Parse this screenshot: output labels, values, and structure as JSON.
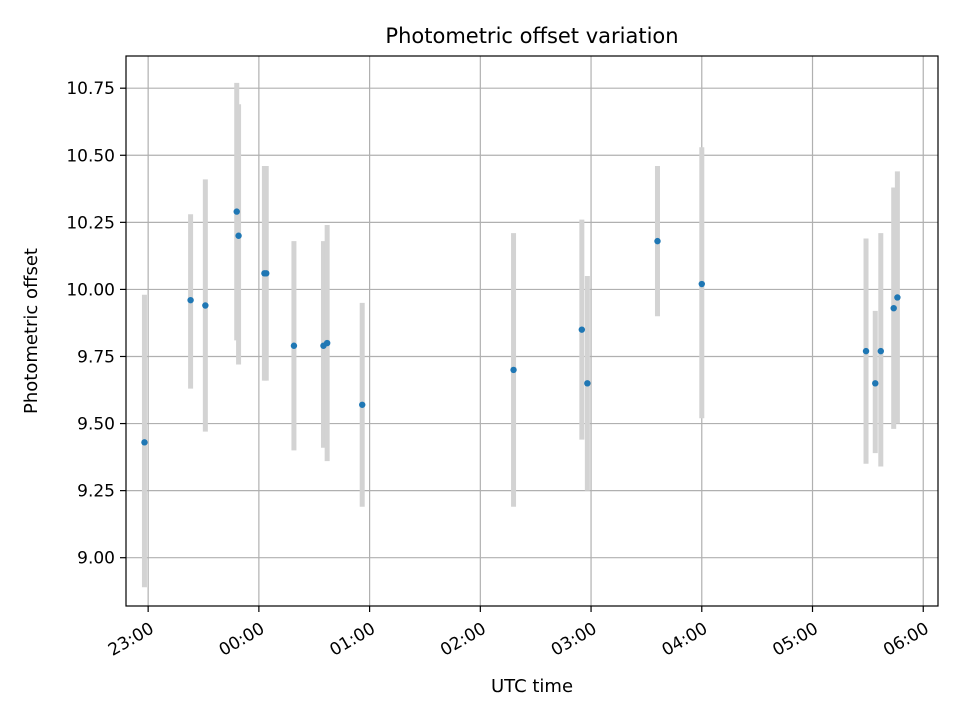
{
  "chart_data": {
    "type": "scatter",
    "title": "Photometric offset variation",
    "xlabel": "UTC time",
    "ylabel": "Photometric offset",
    "x_range": [
      "22:48",
      "06:08"
    ],
    "ylim": [
      8.82,
      10.87
    ],
    "x_ticks": [
      "23:00",
      "00:00",
      "01:00",
      "02:00",
      "03:00",
      "04:00",
      "05:00",
      "06:00"
    ],
    "y_ticks": [
      "9.00",
      "9.25",
      "9.50",
      "9.75",
      "10.00",
      "10.25",
      "10.50",
      "10.75"
    ],
    "grid": true,
    "colors": {
      "points": "#1f77b4",
      "error_bars": "#d3d3d3",
      "grid": "#b0b0b0"
    },
    "points": [
      {
        "t": "22:58",
        "y": 9.43,
        "lo": 8.89,
        "hi": 9.98
      },
      {
        "t": "23:23",
        "y": 9.96,
        "lo": 9.63,
        "hi": 10.28
      },
      {
        "t": "23:31",
        "y": 9.94,
        "lo": 9.47,
        "hi": 10.41
      },
      {
        "t": "23:48",
        "y": 10.29,
        "lo": 9.81,
        "hi": 10.77
      },
      {
        "t": "23:49",
        "y": 10.2,
        "lo": 9.72,
        "hi": 10.69
      },
      {
        "t": "00:03",
        "y": 10.06,
        "lo": 9.66,
        "hi": 10.46
      },
      {
        "t": "00:04",
        "y": 10.06,
        "lo": 9.66,
        "hi": 10.46
      },
      {
        "t": "00:19",
        "y": 9.79,
        "lo": 9.4,
        "hi": 10.18
      },
      {
        "t": "00:35",
        "y": 9.79,
        "lo": 9.41,
        "hi": 10.18
      },
      {
        "t": "00:37",
        "y": 9.8,
        "lo": 9.36,
        "hi": 10.24
      },
      {
        "t": "00:56",
        "y": 9.57,
        "lo": 9.19,
        "hi": 9.95
      },
      {
        "t": "02:18",
        "y": 9.7,
        "lo": 9.19,
        "hi": 10.21
      },
      {
        "t": "02:55",
        "y": 9.85,
        "lo": 9.44,
        "hi": 10.26
      },
      {
        "t": "02:58",
        "y": 9.65,
        "lo": 9.25,
        "hi": 10.05
      },
      {
        "t": "03:36",
        "y": 10.18,
        "lo": 9.9,
        "hi": 10.46
      },
      {
        "t": "04:00",
        "y": 10.02,
        "lo": 9.52,
        "hi": 10.53
      },
      {
        "t": "05:29",
        "y": 9.77,
        "lo": 9.35,
        "hi": 10.19
      },
      {
        "t": "05:34",
        "y": 9.65,
        "lo": 9.39,
        "hi": 9.92
      },
      {
        "t": "05:37",
        "y": 9.77,
        "lo": 9.34,
        "hi": 10.21
      },
      {
        "t": "05:44",
        "y": 9.93,
        "lo": 9.48,
        "hi": 10.38
      },
      {
        "t": "05:46",
        "y": 9.97,
        "lo": 9.5,
        "hi": 10.44
      }
    ]
  }
}
